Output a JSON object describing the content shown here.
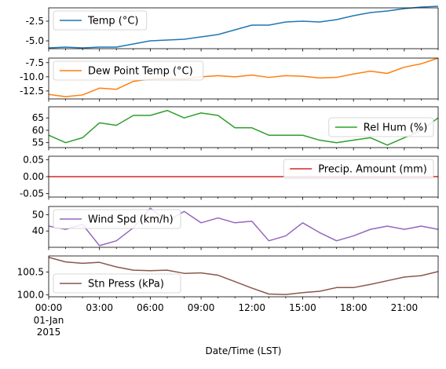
{
  "chart_data": {
    "type": "line",
    "xlabel": "Date/Time (LST)",
    "x_ticks": [
      "00:00",
      "03:00",
      "06:00",
      "09:00",
      "12:00",
      "15:00",
      "18:00",
      "21:00"
    ],
    "x_sub_label": [
      "01-Jan",
      "2015"
    ],
    "hours": [
      0,
      1,
      2,
      3,
      4,
      5,
      6,
      7,
      8,
      9,
      10,
      11,
      12,
      13,
      14,
      15,
      16,
      17,
      18,
      19,
      20,
      21,
      22,
      23
    ],
    "panels": [
      {
        "name": "Temp (°C)",
        "color": "#1f77b4",
        "legend": "upper-left",
        "ylim": [
          -6.0,
          -0.8
        ],
        "yticks": [
          "-2.5",
          "-5.0"
        ],
        "ytick_values": [
          -2.5,
          -5.0
        ],
        "values": [
          -5.9,
          -5.8,
          -5.9,
          -5.8,
          -5.8,
          -5.4,
          -5.0,
          -4.9,
          -4.8,
          -4.5,
          -4.2,
          -3.6,
          -3.0,
          -3.0,
          -2.6,
          -2.5,
          -2.6,
          -2.3,
          -1.8,
          -1.4,
          -1.2,
          -0.9,
          -0.7,
          -0.6
        ]
      },
      {
        "name": "Dew Point Temp (°C)",
        "color": "#ff7f0e",
        "legend": "upper-left",
        "ylim": [
          -13.9,
          -6.7
        ],
        "yticks": [
          "-7.5",
          "-10.0",
          "-12.5"
        ],
        "ytick_values": [
          -7.5,
          -10.0,
          -12.5
        ],
        "values": [
          -13.1,
          -13.5,
          -13.2,
          -12.0,
          -12.2,
          -10.8,
          -10.4,
          -10.3,
          -10.4,
          -10.0,
          -9.8,
          -10.0,
          -9.7,
          -10.1,
          -9.8,
          -9.9,
          -10.2,
          -10.1,
          -9.5,
          -9.0,
          -9.4,
          -8.3,
          -7.7,
          -6.7
        ]
      },
      {
        "name": "Rel Hum (%)",
        "color": "#2ca02c",
        "legend": "center-right",
        "ylim": [
          53,
          69.5
        ],
        "yticks": [
          "65",
          "60",
          "55"
        ],
        "ytick_values": [
          65,
          60,
          55
        ],
        "values": [
          58,
          55,
          57,
          63,
          62,
          66,
          66,
          68,
          65,
          67,
          66,
          61,
          61,
          58,
          58,
          58,
          56,
          55,
          56,
          57,
          54,
          57,
          60,
          65
        ]
      },
      {
        "name": "Precip. Amount (mm)",
        "color": "#d62728",
        "legend": "upper-right",
        "ylim": [
          -0.06,
          0.06
        ],
        "yticks": [
          "0.05",
          "0.00",
          "-0.05"
        ],
        "ytick_values": [
          0.05,
          0.0,
          -0.05
        ],
        "values": [
          0,
          0,
          0,
          0,
          0,
          0,
          0,
          0,
          0,
          0,
          0,
          0,
          0,
          0,
          0,
          0,
          0,
          0,
          0,
          0,
          0,
          0,
          0,
          0
        ]
      },
      {
        "name": "Wind Spd (km/h)",
        "color": "#9467bd",
        "legend": "upper-left",
        "ylim": [
          30,
          55
        ],
        "yticks": [
          "50",
          "40"
        ],
        "ytick_values": [
          50,
          40
        ],
        "values": [
          43,
          41,
          44,
          31,
          34,
          42,
          54,
          46,
          52,
          45,
          48,
          45,
          46,
          34,
          37,
          45,
          39,
          34,
          37,
          41,
          43,
          41,
          43,
          41
        ]
      },
      {
        "name": "Stn Press (kPa)",
        "color": "#8c564b",
        "legend": "lower-left",
        "ylim": [
          99.96,
          100.85
        ],
        "yticks": [
          "100.5",
          "100.0"
        ],
        "ytick_values": [
          100.5,
          100.0
        ],
        "values": [
          100.82,
          100.72,
          100.69,
          100.71,
          100.61,
          100.54,
          100.53,
          100.54,
          100.47,
          100.48,
          100.43,
          100.29,
          100.15,
          100.02,
          100.01,
          100.05,
          100.08,
          100.16,
          100.16,
          100.23,
          100.31,
          100.39,
          100.42,
          100.51
        ]
      }
    ]
  }
}
